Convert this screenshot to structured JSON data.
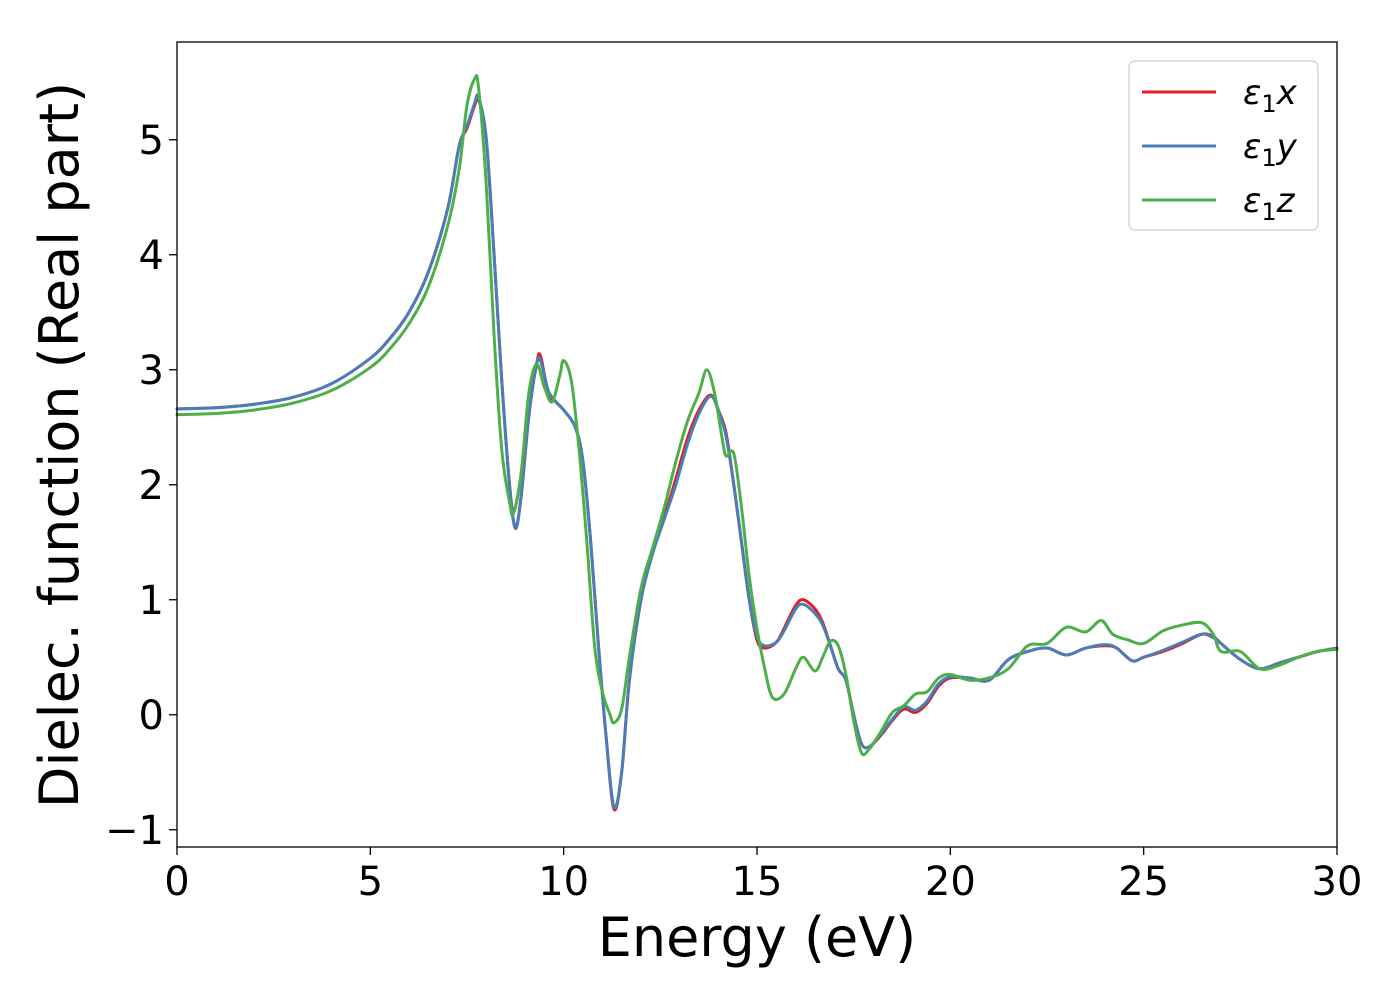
{
  "chart_data": {
    "type": "line",
    "title": "",
    "xlabel": "Energy (eV)",
    "ylabel": "Dielec. function (Real part)",
    "xlim": [
      0,
      30
    ],
    "ylim": [
      -1.15,
      5.85
    ],
    "xticks": [
      0,
      5,
      10,
      15,
      20,
      25,
      30
    ],
    "xtick_labels": [
      "0",
      "5",
      "10",
      "15",
      "20",
      "25",
      "30"
    ],
    "yticks": [
      -1,
      0,
      1,
      2,
      3,
      4,
      5
    ],
    "ytick_labels": [
      "−1",
      "0",
      "1",
      "2",
      "3",
      "4",
      "5"
    ],
    "grid": false,
    "legend_position": "top-right",
    "series": [
      {
        "name": "ε1x",
        "legend_base": "ε",
        "legend_sub": "1",
        "legend_var": "x",
        "color": "#e41a1c",
        "points": [
          [
            0,
            2.66
          ],
          [
            1,
            2.67
          ],
          [
            2,
            2.7
          ],
          [
            3,
            2.76
          ],
          [
            4,
            2.88
          ],
          [
            5,
            3.1
          ],
          [
            5.5,
            3.27
          ],
          [
            6,
            3.5
          ],
          [
            6.5,
            3.85
          ],
          [
            7,
            4.4
          ],
          [
            7.3,
            4.95
          ],
          [
            7.5,
            5.1
          ],
          [
            7.7,
            5.3
          ],
          [
            7.8,
            5.35
          ],
          [
            8,
            5.0
          ],
          [
            8.2,
            4.0
          ],
          [
            8.4,
            2.9
          ],
          [
            8.6,
            2.0
          ],
          [
            8.75,
            1.63
          ],
          [
            8.9,
            1.9
          ],
          [
            9.1,
            2.6
          ],
          [
            9.3,
            3.05
          ],
          [
            9.4,
            3.12
          ],
          [
            9.6,
            2.8
          ],
          [
            9.8,
            2.72
          ],
          [
            10,
            2.65
          ],
          [
            10.3,
            2.5
          ],
          [
            10.5,
            2.2
          ],
          [
            10.7,
            1.5
          ],
          [
            10.9,
            0.6
          ],
          [
            11.1,
            -0.2
          ],
          [
            11.3,
            -0.82
          ],
          [
            11.5,
            -0.5
          ],
          [
            11.7,
            0.3
          ],
          [
            12,
            1.0
          ],
          [
            12.3,
            1.42
          ],
          [
            12.6,
            1.72
          ],
          [
            12.9,
            2.05
          ],
          [
            13.2,
            2.4
          ],
          [
            13.5,
            2.65
          ],
          [
            13.8,
            2.78
          ],
          [
            14.0,
            2.65
          ],
          [
            14.2,
            2.45
          ],
          [
            14.4,
            2.0
          ],
          [
            14.6,
            1.5
          ],
          [
            14.8,
            1.0
          ],
          [
            15,
            0.65
          ],
          [
            15.2,
            0.58
          ],
          [
            15.5,
            0.63
          ],
          [
            15.7,
            0.75
          ],
          [
            16,
            0.95
          ],
          [
            16.2,
            1.0
          ],
          [
            16.5,
            0.92
          ],
          [
            16.7,
            0.8
          ],
          [
            16.9,
            0.6
          ],
          [
            17.1,
            0.4
          ],
          [
            17.3,
            0.3
          ],
          [
            17.5,
            0.0
          ],
          [
            17.7,
            -0.25
          ],
          [
            17.9,
            -0.28
          ],
          [
            18.2,
            -0.18
          ],
          [
            18.5,
            -0.05
          ],
          [
            18.8,
            0.05
          ],
          [
            19.1,
            0.02
          ],
          [
            19.4,
            0.1
          ],
          [
            19.7,
            0.25
          ],
          [
            20,
            0.32
          ],
          [
            20.5,
            0.32
          ],
          [
            21,
            0.3
          ],
          [
            21.5,
            0.48
          ],
          [
            22,
            0.55
          ],
          [
            22.5,
            0.58
          ],
          [
            23,
            0.52
          ],
          [
            23.5,
            0.58
          ],
          [
            24,
            0.6
          ],
          [
            24.3,
            0.58
          ],
          [
            24.7,
            0.47
          ],
          [
            25,
            0.5
          ],
          [
            25.5,
            0.55
          ],
          [
            26,
            0.62
          ],
          [
            26.5,
            0.7
          ],
          [
            26.8,
            0.68
          ],
          [
            27,
            0.62
          ],
          [
            27.5,
            0.48
          ],
          [
            28,
            0.4
          ],
          [
            28.5,
            0.45
          ],
          [
            29,
            0.5
          ],
          [
            29.5,
            0.55
          ],
          [
            30,
            0.58
          ]
        ]
      },
      {
        "name": "ε1y",
        "legend_base": "ε",
        "legend_sub": "1",
        "legend_var": "y",
        "color": "#4a7eb8",
        "points": [
          [
            0,
            2.66
          ],
          [
            1,
            2.67
          ],
          [
            2,
            2.7
          ],
          [
            3,
            2.76
          ],
          [
            4,
            2.88
          ],
          [
            5,
            3.1
          ],
          [
            5.5,
            3.27
          ],
          [
            6,
            3.5
          ],
          [
            6.5,
            3.85
          ],
          [
            7,
            4.4
          ],
          [
            7.3,
            4.95
          ],
          [
            7.5,
            5.12
          ],
          [
            7.7,
            5.32
          ],
          [
            7.8,
            5.37
          ],
          [
            8,
            5.0
          ],
          [
            8.2,
            4.0
          ],
          [
            8.4,
            2.9
          ],
          [
            8.6,
            2.0
          ],
          [
            8.75,
            1.62
          ],
          [
            8.9,
            1.9
          ],
          [
            9.1,
            2.6
          ],
          [
            9.3,
            3.05
          ],
          [
            9.4,
            3.08
          ],
          [
            9.6,
            2.82
          ],
          [
            9.8,
            2.72
          ],
          [
            10,
            2.65
          ],
          [
            10.3,
            2.5
          ],
          [
            10.5,
            2.2
          ],
          [
            10.7,
            1.5
          ],
          [
            10.9,
            0.6
          ],
          [
            11.1,
            -0.2
          ],
          [
            11.3,
            -0.8
          ],
          [
            11.5,
            -0.5
          ],
          [
            11.7,
            0.3
          ],
          [
            12,
            1.0
          ],
          [
            12.3,
            1.4
          ],
          [
            12.6,
            1.7
          ],
          [
            12.9,
            2.0
          ],
          [
            13.2,
            2.35
          ],
          [
            13.5,
            2.62
          ],
          [
            13.8,
            2.77
          ],
          [
            14.0,
            2.65
          ],
          [
            14.2,
            2.42
          ],
          [
            14.4,
            2.0
          ],
          [
            14.6,
            1.5
          ],
          [
            14.8,
            1.0
          ],
          [
            15,
            0.68
          ],
          [
            15.2,
            0.6
          ],
          [
            15.5,
            0.63
          ],
          [
            15.7,
            0.73
          ],
          [
            16,
            0.92
          ],
          [
            16.2,
            0.96
          ],
          [
            16.5,
            0.88
          ],
          [
            16.7,
            0.78
          ],
          [
            16.9,
            0.6
          ],
          [
            17.1,
            0.4
          ],
          [
            17.3,
            0.3
          ],
          [
            17.5,
            0.0
          ],
          [
            17.7,
            -0.25
          ],
          [
            17.9,
            -0.28
          ],
          [
            18.2,
            -0.17
          ],
          [
            18.5,
            -0.04
          ],
          [
            18.8,
            0.07
          ],
          [
            19.1,
            0.04
          ],
          [
            19.4,
            0.12
          ],
          [
            19.7,
            0.27
          ],
          [
            20,
            0.33
          ],
          [
            20.5,
            0.32
          ],
          [
            21,
            0.3
          ],
          [
            21.5,
            0.48
          ],
          [
            22,
            0.55
          ],
          [
            22.5,
            0.58
          ],
          [
            23,
            0.52
          ],
          [
            23.5,
            0.58
          ],
          [
            24,
            0.61
          ],
          [
            24.3,
            0.58
          ],
          [
            24.7,
            0.47
          ],
          [
            25,
            0.5
          ],
          [
            25.5,
            0.56
          ],
          [
            26,
            0.63
          ],
          [
            26.5,
            0.7
          ],
          [
            26.8,
            0.67
          ],
          [
            27,
            0.62
          ],
          [
            27.5,
            0.48
          ],
          [
            28,
            0.4
          ],
          [
            28.5,
            0.45
          ],
          [
            29,
            0.5
          ],
          [
            29.5,
            0.55
          ],
          [
            30,
            0.58
          ]
        ]
      },
      {
        "name": "ε1z",
        "legend_base": "ε",
        "legend_sub": "1",
        "legend_var": "z",
        "color": "#4daf4a",
        "points": [
          [
            0,
            2.61
          ],
          [
            1,
            2.62
          ],
          [
            2,
            2.65
          ],
          [
            3,
            2.71
          ],
          [
            4,
            2.82
          ],
          [
            5,
            3.02
          ],
          [
            5.5,
            3.18
          ],
          [
            6,
            3.4
          ],
          [
            6.5,
            3.72
          ],
          [
            7,
            4.25
          ],
          [
            7.3,
            4.75
          ],
          [
            7.5,
            5.3
          ],
          [
            7.7,
            5.53
          ],
          [
            7.8,
            5.45
          ],
          [
            8,
            4.6
          ],
          [
            8.2,
            3.3
          ],
          [
            8.4,
            2.3
          ],
          [
            8.6,
            1.85
          ],
          [
            8.7,
            1.75
          ],
          [
            8.9,
            2.1
          ],
          [
            9.1,
            2.8
          ],
          [
            9.3,
            3.05
          ],
          [
            9.5,
            2.85
          ],
          [
            9.7,
            2.72
          ],
          [
            9.9,
            2.95
          ],
          [
            10.0,
            3.08
          ],
          [
            10.2,
            2.9
          ],
          [
            10.4,
            2.3
          ],
          [
            10.6,
            1.5
          ],
          [
            10.8,
            0.6
          ],
          [
            11.0,
            0.2
          ],
          [
            11.2,
            0.0
          ],
          [
            11.3,
            -0.07
          ],
          [
            11.5,
            0.05
          ],
          [
            11.7,
            0.5
          ],
          [
            12,
            1.1
          ],
          [
            12.3,
            1.45
          ],
          [
            12.6,
            1.8
          ],
          [
            12.9,
            2.2
          ],
          [
            13.2,
            2.55
          ],
          [
            13.5,
            2.8
          ],
          [
            13.7,
            3.0
          ],
          [
            13.9,
            2.8
          ],
          [
            14.1,
            2.4
          ],
          [
            14.2,
            2.25
          ],
          [
            14.4,
            2.27
          ],
          [
            14.6,
            1.8
          ],
          [
            14.8,
            1.2
          ],
          [
            15,
            0.75
          ],
          [
            15.2,
            0.4
          ],
          [
            15.4,
            0.15
          ],
          [
            15.7,
            0.18
          ],
          [
            16,
            0.4
          ],
          [
            16.2,
            0.5
          ],
          [
            16.5,
            0.38
          ],
          [
            16.7,
            0.5
          ],
          [
            16.9,
            0.64
          ],
          [
            17.1,
            0.6
          ],
          [
            17.3,
            0.35
          ],
          [
            17.5,
            -0.05
          ],
          [
            17.7,
            -0.33
          ],
          [
            17.9,
            -0.3
          ],
          [
            18.2,
            -0.15
          ],
          [
            18.5,
            0.02
          ],
          [
            18.8,
            0.08
          ],
          [
            19.1,
            0.18
          ],
          [
            19.4,
            0.2
          ],
          [
            19.7,
            0.32
          ],
          [
            20,
            0.35
          ],
          [
            20.5,
            0.3
          ],
          [
            21,
            0.32
          ],
          [
            21.5,
            0.4
          ],
          [
            22,
            0.6
          ],
          [
            22.5,
            0.62
          ],
          [
            23,
            0.76
          ],
          [
            23.5,
            0.72
          ],
          [
            23.9,
            0.82
          ],
          [
            24.2,
            0.7
          ],
          [
            24.6,
            0.65
          ],
          [
            25,
            0.62
          ],
          [
            25.5,
            0.73
          ],
          [
            26,
            0.78
          ],
          [
            26.5,
            0.8
          ],
          [
            26.8,
            0.7
          ],
          [
            27,
            0.55
          ],
          [
            27.5,
            0.55
          ],
          [
            28,
            0.4
          ],
          [
            28.5,
            0.43
          ],
          [
            29,
            0.5
          ],
          [
            29.5,
            0.55
          ],
          [
            30,
            0.57
          ]
        ]
      }
    ]
  }
}
